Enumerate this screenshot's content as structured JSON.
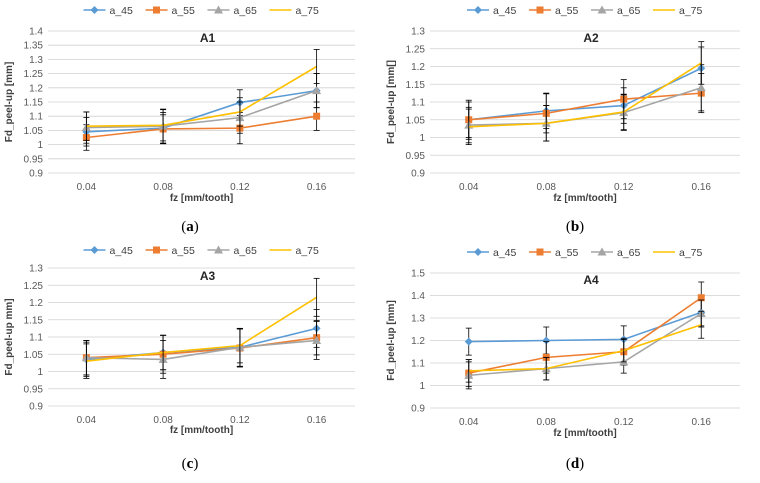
{
  "colors": {
    "a_45": "#5b9bd5",
    "a_55": "#ed7d31",
    "a_65": "#a5a5a5",
    "a_75": "#ffc000",
    "grid": "#d0d0d0",
    "axis_text": "#595959",
    "error_bar": "#000000"
  },
  "chart_data": [
    {
      "id": "A1",
      "type": "line",
      "title": "A1",
      "caption": "a",
      "xlabel": "fz [mm/tooth]",
      "ylabel": "Fd_peel-up [mm]",
      "categories": [
        "0.04",
        "0.08",
        "0.12",
        "0.16"
      ],
      "ylim": [
        0.9,
        1.4
      ],
      "yticks": [
        "0.9",
        "0.95",
        "1",
        "1.05",
        "1.1",
        "1.15",
        "1.2",
        "1.25",
        "1.3",
        "1.35",
        "1.4"
      ],
      "legend": "top",
      "series": [
        {
          "name": "a_45",
          "marker": "diamond",
          "values": [
            1.045,
            1.058,
            1.148,
            1.19
          ],
          "errors": [
            0.05,
            0.055,
            0.045,
            0.06
          ]
        },
        {
          "name": "a_55",
          "marker": "square",
          "values": [
            1.025,
            1.055,
            1.058,
            1.1
          ],
          "errors": [
            0.045,
            0.05,
            0.055,
            0.05
          ]
        },
        {
          "name": "a_65",
          "marker": "triangle",
          "values": [
            1.06,
            1.065,
            1.095,
            1.19
          ],
          "errors": [
            0.055,
            0.06,
            0.055,
            0.06
          ]
        },
        {
          "name": "a_75",
          "marker": "none",
          "values": [
            1.065,
            1.068,
            1.115,
            1.275
          ],
          "errors": [
            0.05,
            0.055,
            0.05,
            0.06
          ]
        }
      ]
    },
    {
      "id": "A2",
      "type": "line",
      "title": "A2",
      "caption": "b",
      "xlabel": "fz [mm/tooth]",
      "ylabel": "Fd_peel-up [mm[]",
      "categories": [
        "0.04",
        "0.08",
        "0.12",
        "0.16"
      ],
      "ylim": [
        0.9,
        1.3
      ],
      "yticks": [
        "0.9",
        "0.95",
        "1",
        "1.05",
        "1.1",
        "1.15",
        "1.2",
        "1.25",
        "1.3"
      ],
      "legend": "top",
      "series": [
        {
          "name": "a_45",
          "marker": "diamond",
          "values": [
            1.05,
            1.075,
            1.09,
            1.195
          ],
          "errors": [
            0.05,
            0.05,
            0.05,
            0.06
          ]
        },
        {
          "name": "a_55",
          "marker": "square",
          "values": [
            1.05,
            1.068,
            1.108,
            1.125
          ],
          "errors": [
            0.055,
            0.055,
            0.055,
            0.055
          ]
        },
        {
          "name": "a_65",
          "marker": "triangle",
          "values": [
            1.035,
            1.04,
            1.07,
            1.14
          ],
          "errors": [
            0.05,
            0.05,
            0.05,
            0.065
          ]
        },
        {
          "name": "a_75",
          "marker": "none",
          "values": [
            1.03,
            1.04,
            1.072,
            1.21
          ],
          "errors": [
            0.05,
            0.05,
            0.05,
            0.06
          ]
        }
      ]
    },
    {
      "id": "A3",
      "type": "line",
      "title": "A3",
      "caption": "c",
      "xlabel": "fz [mm/tooth]",
      "ylabel": "Fd_peel-up mm]",
      "categories": [
        "0.04",
        "0.08",
        "0.12",
        "0.16"
      ],
      "ylim": [
        0.9,
        1.3
      ],
      "yticks": [
        "0.9",
        "0.95",
        "1",
        "1.05",
        "1.1",
        "1.15",
        "1.2",
        "1.25",
        "1.3"
      ],
      "legend": "top",
      "series": [
        {
          "name": "a_45",
          "marker": "diamond",
          "values": [
            1.035,
            1.055,
            1.07,
            1.125
          ],
          "errors": [
            0.05,
            0.05,
            0.055,
            0.055
          ]
        },
        {
          "name": "a_55",
          "marker": "square",
          "values": [
            1.04,
            1.05,
            1.068,
            1.098
          ],
          "errors": [
            0.05,
            0.055,
            0.055,
            0.05
          ]
        },
        {
          "name": "a_65",
          "marker": "triangle",
          "values": [
            1.04,
            1.035,
            1.07,
            1.09
          ],
          "errors": [
            0.05,
            0.055,
            0.055,
            0.055
          ]
        },
        {
          "name": "a_75",
          "marker": "none",
          "values": [
            1.03,
            1.055,
            1.075,
            1.215
          ],
          "errors": [
            0.05,
            0.05,
            0.05,
            0.055
          ]
        }
      ]
    },
    {
      "id": "A4",
      "type": "line",
      "title": "A4",
      "caption": "d",
      "xlabel": "fz [mm/tooth]",
      "ylabel": "Fd_peel-up [mm]",
      "categories": [
        "0.04",
        "0.08",
        "0.12",
        "0.16"
      ],
      "ylim": [
        0.9,
        1.5
      ],
      "yticks": [
        "0.9",
        "1",
        "1.1",
        "1.2",
        "1.3",
        "1.4",
        "1.5"
      ],
      "legend": "top",
      "series": [
        {
          "name": "a_45",
          "marker": "diamond",
          "values": [
            1.195,
            1.2,
            1.205,
            1.325
          ],
          "errors": [
            0.06,
            0.06,
            0.06,
            0.06
          ]
        },
        {
          "name": "a_55",
          "marker": "square",
          "values": [
            1.055,
            1.125,
            1.15,
            1.39
          ],
          "errors": [
            0.06,
            0.07,
            0.06,
            0.07
          ]
        },
        {
          "name": "a_65",
          "marker": "triangle",
          "values": [
            1.045,
            1.075,
            1.105,
            1.32
          ],
          "errors": [
            0.06,
            0.05,
            0.05,
            0.06
          ]
        },
        {
          "name": "a_75",
          "marker": "none",
          "values": [
            1.065,
            1.075,
            1.155,
            1.27
          ],
          "errors": [
            0.05,
            0.05,
            0.05,
            0.06
          ]
        }
      ]
    }
  ]
}
